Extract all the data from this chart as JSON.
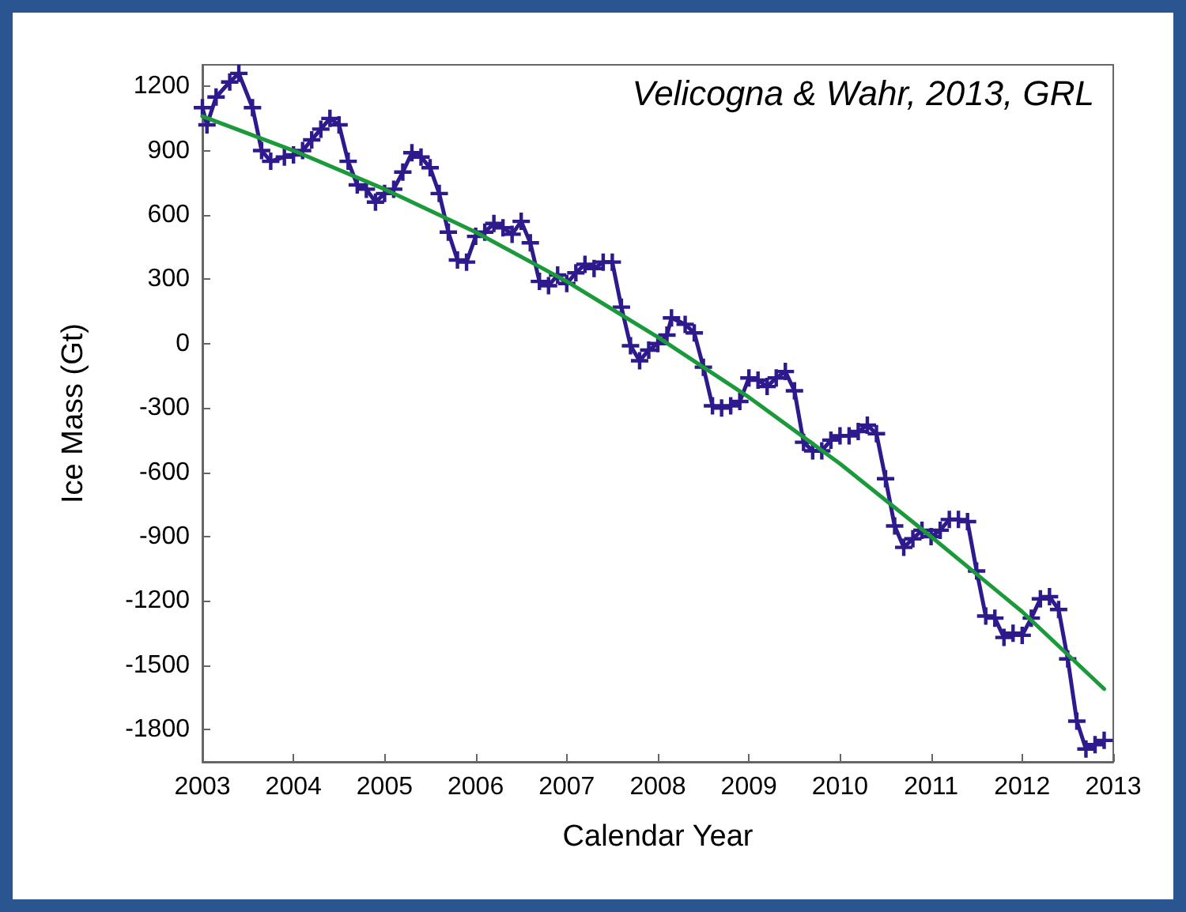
{
  "chart_data": {
    "type": "line",
    "xlabel": "Calendar Year",
    "ylabel": "Ice Mass (Gt)",
    "annotations": [
      "Velicogna & Wahr, 2013, GRL"
    ],
    "xlim": [
      2003,
      2013
    ],
    "xticks": [
      2003,
      2004,
      2005,
      2006,
      2007,
      2008,
      2009,
      2010,
      2011,
      2012,
      2013
    ],
    "ylim": [
      -1950,
      1300
    ],
    "yticks": [
      -1800,
      -1500,
      -1200,
      -900,
      -600,
      -300,
      0,
      300,
      600,
      900,
      1200
    ],
    "grid": false,
    "series": [
      {
        "color": "#2e1a8c",
        "marker": "cross",
        "x": [
          2003.0,
          2003.05,
          2003.15,
          2003.3,
          2003.4,
          2003.55,
          2003.65,
          2003.75,
          2003.9,
          2004.0,
          2004.1,
          2004.2,
          2004.3,
          2004.4,
          2004.5,
          2004.6,
          2004.7,
          2004.8,
          2004.9,
          2005.0,
          2005.1,
          2005.2,
          2005.3,
          2005.4,
          2005.5,
          2005.6,
          2005.7,
          2005.8,
          2005.9,
          2006.0,
          2006.1,
          2006.2,
          2006.3,
          2006.4,
          2006.5,
          2006.6,
          2006.7,
          2006.8,
          2006.9,
          2007.0,
          2007.1,
          2007.2,
          2007.3,
          2007.4,
          2007.5,
          2007.6,
          2007.7,
          2007.8,
          2007.9,
          2008.0,
          2008.1,
          2008.15,
          2008.3,
          2008.4,
          2008.5,
          2008.6,
          2008.7,
          2008.8,
          2008.9,
          2009.0,
          2009.1,
          2009.2,
          2009.3,
          2009.4,
          2009.5,
          2009.6,
          2009.7,
          2009.8,
          2009.9,
          2010.0,
          2010.1,
          2010.2,
          2010.3,
          2010.4,
          2010.5,
          2010.6,
          2010.7,
          2010.8,
          2010.9,
          2011.0,
          2011.1,
          2011.2,
          2011.3,
          2011.4,
          2011.5,
          2011.6,
          2011.7,
          2011.8,
          2011.9,
          2012.0,
          2012.1,
          2012.2,
          2012.3,
          2012.4,
          2012.5,
          2012.6,
          2012.7,
          2012.8,
          2012.9
        ],
        "values": [
          1100,
          1020,
          1150,
          1220,
          1260,
          1100,
          900,
          850,
          870,
          880,
          900,
          950,
          1000,
          1050,
          1020,
          850,
          740,
          720,
          660,
          700,
          720,
          800,
          890,
          870,
          820,
          700,
          520,
          390,
          380,
          500,
          520,
          560,
          540,
          510,
          570,
          470,
          290,
          270,
          320,
          280,
          330,
          370,
          350,
          380,
          380,
          170,
          -10,
          -80,
          -30,
          0,
          40,
          120,
          90,
          50,
          -110,
          -290,
          -300,
          -290,
          -270,
          -160,
          -170,
          -200,
          -160,
          -130,
          -220,
          -460,
          -500,
          -500,
          -450,
          -430,
          -430,
          -410,
          -380,
          -420,
          -630,
          -850,
          -950,
          -910,
          -870,
          -900,
          -870,
          -820,
          -820,
          -830,
          -1060,
          -1270,
          -1280,
          -1370,
          -1350,
          -1360,
          -1280,
          -1190,
          -1180,
          -1240,
          -1470,
          -1760,
          -1890,
          -1870,
          -1850
        ]
      },
      {
        "color": "#1a9a3a",
        "marker": "none",
        "x": [
          2003,
          2004,
          2005,
          2006,
          2007,
          2008,
          2009,
          2010,
          2011,
          2012,
          2012.9
        ],
        "values": [
          1060,
          900,
          720,
          520,
          290,
          30,
          -250,
          -560,
          -900,
          -1250,
          -1610
        ]
      }
    ]
  }
}
